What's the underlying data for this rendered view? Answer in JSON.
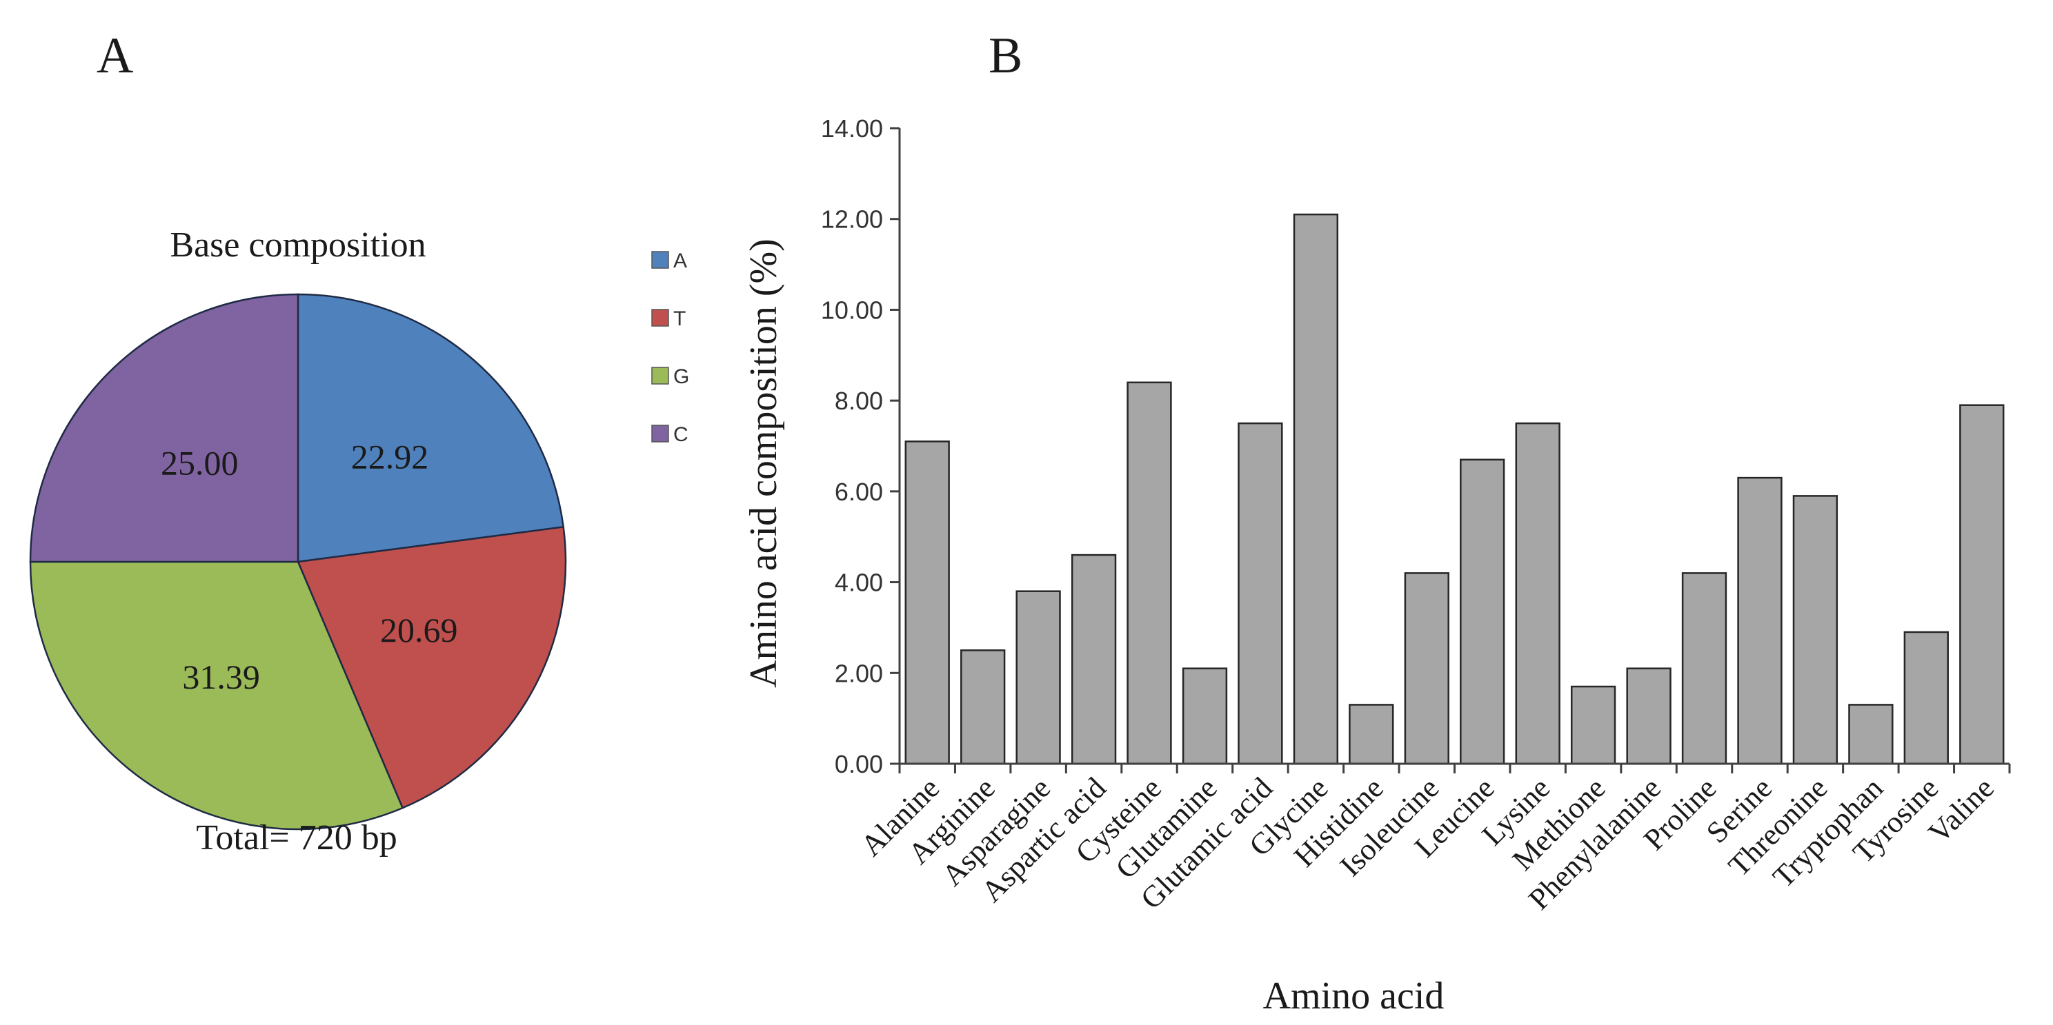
{
  "chart_data": [
    {
      "type": "pie",
      "panel_label": "A",
      "title": "Base composition",
      "footer": "Total= 720 bp",
      "slices": [
        {
          "label": "A",
          "value": 22.92,
          "display": "22.92",
          "color": "#4f81bd"
        },
        {
          "label": "T",
          "value": 20.69,
          "display": "20.69",
          "color": "#c0504d"
        },
        {
          "label": "G",
          "value": 31.39,
          "display": "31.39",
          "color": "#9bbb59"
        },
        {
          "label": "C",
          "value": 25.0,
          "display": "25.00",
          "color": "#8064a2"
        }
      ],
      "legend": [
        "A",
        "T",
        "G",
        "C"
      ],
      "legend_position": "right"
    },
    {
      "type": "bar",
      "panel_label": "B",
      "title": "",
      "xlabel": "Amino acid",
      "ylabel": "Amino acid composition  (%)",
      "ylim": [
        0,
        14
      ],
      "yticks": [
        "0.00",
        "2.00",
        "4.00",
        "6.00",
        "8.00",
        "10.00",
        "12.00",
        "14.00"
      ],
      "bar_color": "#a6a6a6",
      "categories": [
        "Alanine",
        "Arginine",
        "Asparagine",
        "Aspartic acid",
        "Cysteine",
        "Glutamine",
        "Glutamic acid",
        "Glycine",
        "Histidine",
        "Isoleucine",
        "Leucine",
        "Lysine",
        "Methione",
        "Phenylalanine",
        "Proline",
        "Serine",
        "Threonine",
        "Tryptophan",
        "Tyrosine",
        "Valine"
      ],
      "values": [
        7.1,
        2.5,
        3.8,
        4.6,
        8.4,
        2.1,
        7.5,
        12.1,
        1.3,
        4.2,
        6.7,
        7.5,
        1.7,
        2.1,
        4.2,
        6.3,
        5.9,
        1.3,
        2.9,
        7.9
      ]
    }
  ]
}
